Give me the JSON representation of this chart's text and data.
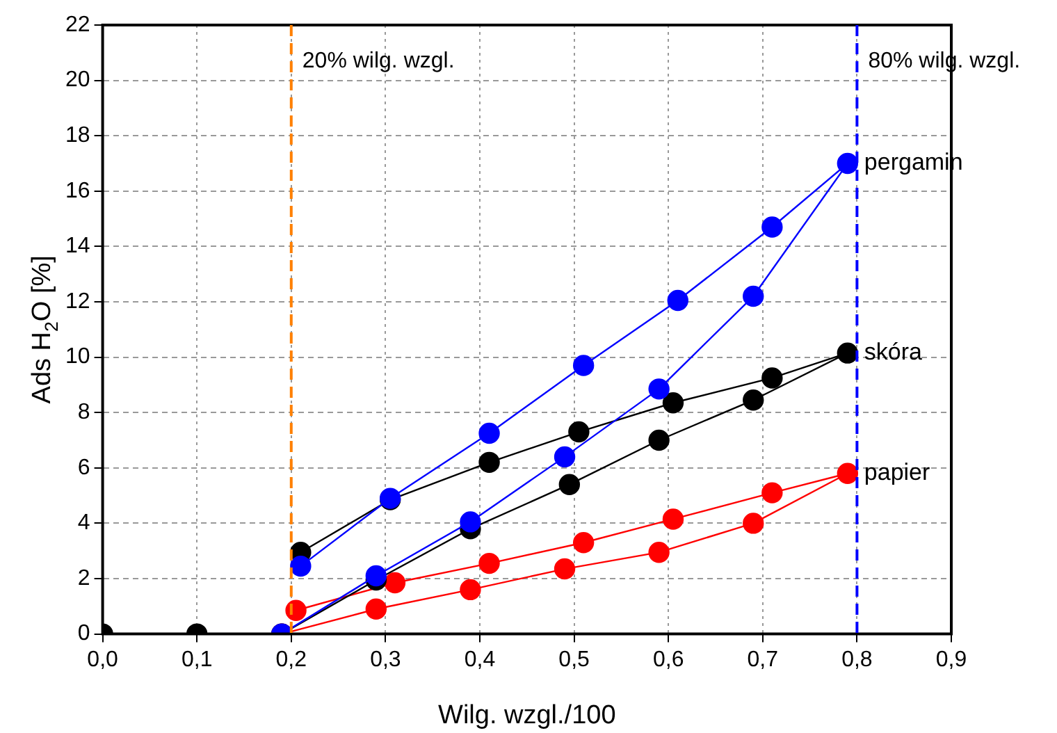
{
  "chart_data": {
    "type": "line",
    "xlabel": "Wilg. wzgl./100",
    "ylabel": "Ads H$_{2}$O [%]",
    "xlim": [
      0,
      0.9
    ],
    "ylim": [
      0,
      22
    ],
    "xticks": [
      {
        "value": 0,
        "label": "0,0"
      },
      {
        "value": 0.1,
        "label": "0,1"
      },
      {
        "value": 0.2,
        "label": "0,2"
      },
      {
        "value": 0.3,
        "label": "0,3"
      },
      {
        "value": 0.4,
        "label": "0,4"
      },
      {
        "value": 0.5,
        "label": "0,5"
      },
      {
        "value": 0.6,
        "label": "0,6"
      },
      {
        "value": 0.7,
        "label": "0,7"
      },
      {
        "value": 0.8,
        "label": "0,8"
      },
      {
        "value": 0.9,
        "label": "0,9"
      }
    ],
    "yticks": [
      0,
      2,
      4,
      6,
      8,
      10,
      12,
      14,
      16,
      18,
      20,
      22
    ],
    "grid": true,
    "legend": false,
    "marker": "circle",
    "line_style": "solid",
    "ref_lines": [
      {
        "axis": "x",
        "value": 0.2,
        "label": "20% wilg. wzgl.",
        "color": "#ff8000",
        "line_style": "dashed"
      },
      {
        "axis": "x",
        "value": 0.8,
        "label": "80% wilg. wzgl.",
        "color": "#0000ff",
        "line_style": "dashed"
      }
    ],
    "series": [
      {
        "name": "pergamin",
        "color": "#0000ff",
        "x": [
          0.19,
          0.29,
          0.39,
          0.49,
          0.59,
          0.69,
          0.79,
          0.71,
          0.61,
          0.51,
          0.41,
          0.305,
          0.21
        ],
        "values": [
          0,
          2.1,
          4.05,
          6.4,
          8.85,
          12.2,
          17.0,
          14.7,
          12.05,
          9.7,
          7.25,
          4.9,
          2.45
        ]
      },
      {
        "name": "skóra",
        "color": "#000000",
        "x": [
          0,
          0.1,
          0.19,
          0.29,
          0.39,
          0.495,
          0.59,
          0.69,
          0.79,
          0.71,
          0.605,
          0.505,
          0.41,
          0.305,
          0.21
        ],
        "values": [
          0,
          0,
          0,
          1.95,
          3.8,
          5.4,
          7.0,
          8.45,
          10.15,
          9.25,
          8.35,
          7.3,
          6.2,
          4.85,
          2.95
        ]
      },
      {
        "name": "papier",
        "color": "#ff0000",
        "x": [
          0.19,
          0.29,
          0.39,
          0.49,
          0.59,
          0.69,
          0.79,
          0.71,
          0.605,
          0.51,
          0.41,
          0.31,
          0.205
        ],
        "values": [
          0,
          0.9,
          1.6,
          2.35,
          2.95,
          4.0,
          5.8,
          5.1,
          4.15,
          3.3,
          2.55,
          1.85,
          0.85
        ]
      }
    ]
  }
}
